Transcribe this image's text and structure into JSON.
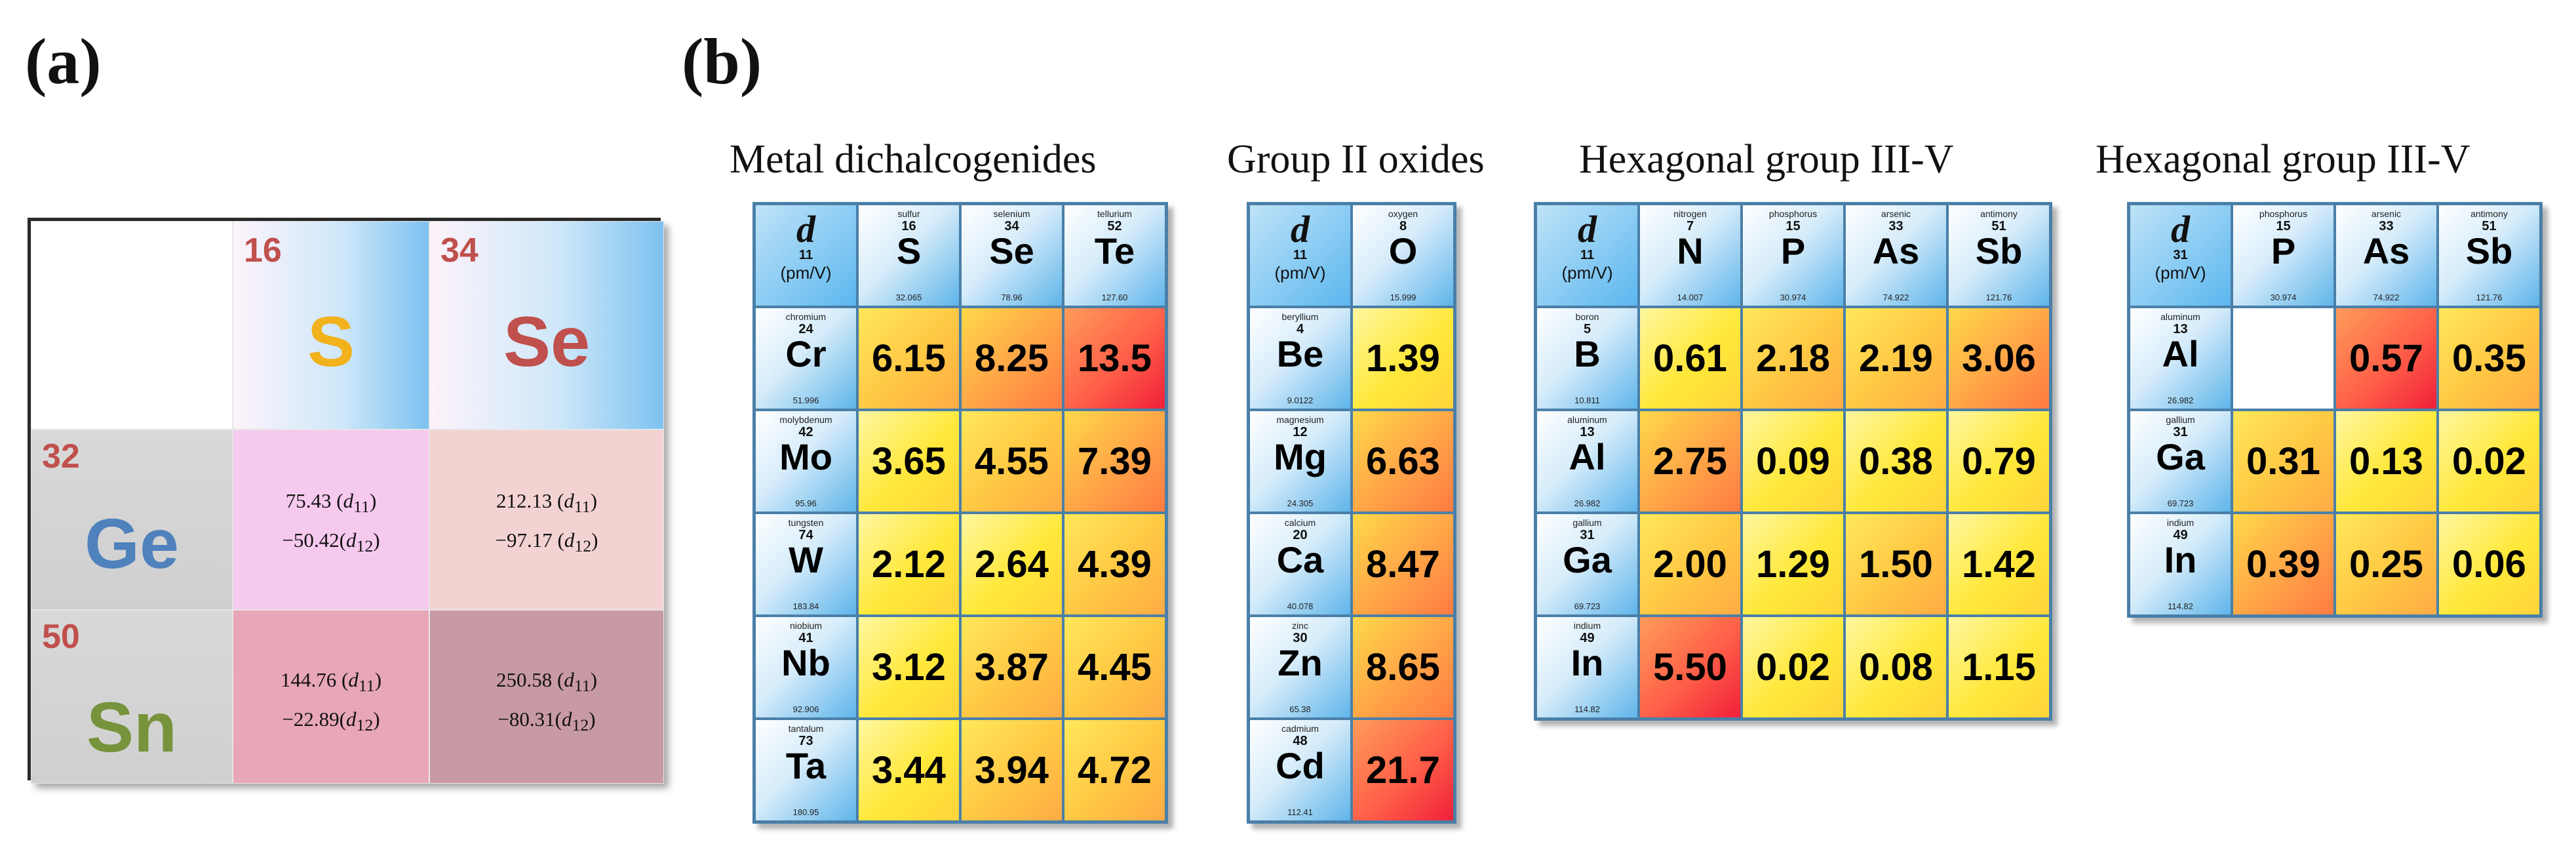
{
  "panel_a": {
    "label": "(a)",
    "col_headers": [
      {
        "num": "16",
        "sym": "S"
      },
      {
        "num": "34",
        "sym": "Se"
      }
    ],
    "row_headers": [
      {
        "num": "32",
        "sym": "Ge"
      },
      {
        "num": "50",
        "sym": "Sn"
      }
    ],
    "cells": [
      [
        {
          "d11": "75.43",
          "d12": "−50.42"
        },
        {
          "d11": "212.13",
          "d12": "−97.17"
        }
      ],
      [
        {
          "d11": "144.76",
          "d12": "−22.89"
        },
        {
          "d11": "250.58",
          "d12": "−80.31"
        }
      ]
    ],
    "d11_label": "d",
    "d11_sub": "11",
    "d12_sub": "12",
    "colors": {
      "S": "#f2b21c",
      "Se": "#c0504d",
      "Ge": "#4f81bd",
      "Sn": "#77933c",
      "num": "#c0504d"
    }
  },
  "panel_b": {
    "label": "(b)",
    "tables": [
      {
        "title": "Metal dichalcogenides",
        "corner": {
          "d": "d",
          "sub": "11",
          "unit": "(pm/V)"
        },
        "cols": [
          {
            "name": "sulfur",
            "num": "16",
            "sym": "S",
            "mass": "32.065"
          },
          {
            "name": "selenium",
            "num": "34",
            "sym": "Se",
            "mass": "78.96"
          },
          {
            "name": "tellurium",
            "num": "52",
            "sym": "Te",
            "mass": "127.60"
          }
        ],
        "rows": [
          {
            "el": {
              "name": "chromium",
              "num": "24",
              "sym": "Cr",
              "mass": "51.996"
            },
            "vals": [
              "6.15",
              "8.25",
              "13.5"
            ],
            "shades": [
              "yo",
              "o",
              "r"
            ]
          },
          {
            "el": {
              "name": "molybdenum",
              "num": "42",
              "sym": "Mo",
              "mass": "95.96"
            },
            "vals": [
              "3.65",
              "4.55",
              "7.39"
            ],
            "shades": [
              "y",
              "yo",
              "o"
            ]
          },
          {
            "el": {
              "name": "tungsten",
              "num": "74",
              "sym": "W",
              "mass": "183.84"
            },
            "vals": [
              "2.12",
              "2.64",
              "4.39"
            ],
            "shades": [
              "y",
              "y",
              "yo"
            ]
          },
          {
            "el": {
              "name": "niobium",
              "num": "41",
              "sym": "Nb",
              "mass": "92.906"
            },
            "vals": [
              "3.12",
              "3.87",
              "4.45"
            ],
            "shades": [
              "y",
              "yo",
              "yo"
            ]
          },
          {
            "el": {
              "name": "tantalum",
              "num": "73",
              "sym": "Ta",
              "mass": "180.95"
            },
            "vals": [
              "3.44",
              "3.94",
              "4.72"
            ],
            "shades": [
              "y",
              "yo",
              "yo"
            ]
          }
        ]
      },
      {
        "title": "Group II oxides",
        "corner": {
          "d": "d",
          "sub": "11",
          "unit": "(pm/V)"
        },
        "cols": [
          {
            "name": "oxygen",
            "num": "8",
            "sym": "O",
            "mass": "15.999"
          }
        ],
        "rows": [
          {
            "el": {
              "name": "beryllium",
              "num": "4",
              "sym": "Be",
              "mass": "9.0122"
            },
            "vals": [
              "1.39"
            ],
            "shades": [
              "y"
            ]
          },
          {
            "el": {
              "name": "magnesium",
              "num": "12",
              "sym": "Mg",
              "mass": "24.305"
            },
            "vals": [
              "6.63"
            ],
            "shades": [
              "o"
            ]
          },
          {
            "el": {
              "name": "calcium",
              "num": "20",
              "sym": "Ca",
              "mass": "40.078"
            },
            "vals": [
              "8.47"
            ],
            "shades": [
              "o"
            ]
          },
          {
            "el": {
              "name": "zinc",
              "num": "30",
              "sym": "Zn",
              "mass": "65.38"
            },
            "vals": [
              "8.65"
            ],
            "shades": [
              "o"
            ]
          },
          {
            "el": {
              "name": "cadmium",
              "num": "48",
              "sym": "Cd",
              "mass": "112.41"
            },
            "vals": [
              "21.7"
            ],
            "shades": [
              "r"
            ]
          }
        ]
      },
      {
        "title": "Hexagonal group III-V",
        "corner": {
          "d": "d",
          "sub": "11",
          "unit": "(pm/V)"
        },
        "cols": [
          {
            "name": "nitrogen",
            "num": "7",
            "sym": "N",
            "mass": "14.007"
          },
          {
            "name": "phosphorus",
            "num": "15",
            "sym": "P",
            "mass": "30.974"
          },
          {
            "name": "arsenic",
            "num": "33",
            "sym": "As",
            "mass": "74.922"
          },
          {
            "name": "antimony",
            "num": "51",
            "sym": "Sb",
            "mass": "121.76"
          }
        ],
        "rows": [
          {
            "el": {
              "name": "boron",
              "num": "5",
              "sym": "B",
              "mass": "10.811"
            },
            "vals": [
              "0.61",
              "2.18",
              "2.19",
              "3.06"
            ],
            "shades": [
              "y",
              "yo",
              "yo",
              "o"
            ]
          },
          {
            "el": {
              "name": "aluminum",
              "num": "13",
              "sym": "Al",
              "mass": "26.982"
            },
            "vals": [
              "2.75",
              "0.09",
              "0.38",
              "0.79"
            ],
            "shades": [
              "o",
              "y",
              "y",
              "y"
            ]
          },
          {
            "el": {
              "name": "gallium",
              "num": "31",
              "sym": "Ga",
              "mass": "69.723"
            },
            "vals": [
              "2.00",
              "1.29",
              "1.50",
              "1.42"
            ],
            "shades": [
              "yo",
              "y",
              "yo",
              "y"
            ]
          },
          {
            "el": {
              "name": "indium",
              "num": "49",
              "sym": "In",
              "mass": "114.82"
            },
            "vals": [
              "5.50",
              "0.02",
              "0.08",
              "1.15"
            ],
            "shades": [
              "r",
              "y",
              "y",
              "y"
            ]
          }
        ]
      },
      {
        "title": "Hexagonal group III-V",
        "corner": {
          "d": "d",
          "sub": "31",
          "unit": "(pm/V)"
        },
        "cols": [
          {
            "name": "phosphorus",
            "num": "15",
            "sym": "P",
            "mass": "30.974"
          },
          {
            "name": "arsenic",
            "num": "33",
            "sym": "As",
            "mass": "74.922"
          },
          {
            "name": "antimony",
            "num": "51",
            "sym": "Sb",
            "mass": "121.76"
          }
        ],
        "rows": [
          {
            "el": {
              "name": "aluminum",
              "num": "13",
              "sym": "Al",
              "mass": "26.982"
            },
            "vals": [
              "",
              "0.57",
              "0.35"
            ],
            "shades": [
              "w",
              "r",
              "yo"
            ]
          },
          {
            "el": {
              "name": "gallium",
              "num": "31",
              "sym": "Ga",
              "mass": "69.723"
            },
            "vals": [
              "0.31",
              "0.13",
              "0.02"
            ],
            "shades": [
              "yo",
              "y",
              "y"
            ]
          },
          {
            "el": {
              "name": "indium",
              "num": "49",
              "sym": "In",
              "mass": "114.82"
            },
            "vals": [
              "0.39",
              "0.25",
              "0.06"
            ],
            "shades": [
              "o",
              "yo",
              "y"
            ]
          }
        ]
      }
    ]
  }
}
